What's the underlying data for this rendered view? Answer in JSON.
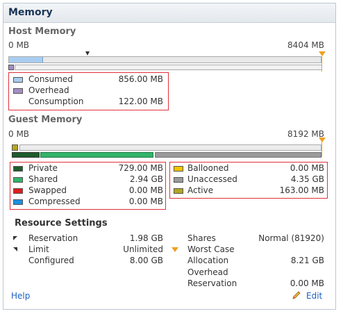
{
  "panel": {
    "title": "Memory"
  },
  "host": {
    "title": "Host Memory",
    "min": "0 MB",
    "max": "8404 MB",
    "rows": [
      {
        "label": "Consumed",
        "value": "856.00 MB",
        "color": "#a8cdf0"
      },
      {
        "label": "Overhead",
        "value": "",
        "color": "#a58dc5"
      },
      {
        "label": "Consumption",
        "value": "122.00 MB",
        "color": ""
      }
    ]
  },
  "guest": {
    "title": "Guest Memory",
    "min": "0 MB",
    "max": "8192 MB",
    "left_rows": [
      {
        "label": "Private",
        "value": "729.00 MB",
        "color": "#1f5d2b"
      },
      {
        "label": "Shared",
        "value": "2.94 GB",
        "color": "#33b46a"
      },
      {
        "label": "Swapped",
        "value": "0.00 MB",
        "color": "#e21b1b"
      },
      {
        "label": "Compressed",
        "value": "0.00 MB",
        "color": "#1c8fe0"
      }
    ],
    "right_rows": [
      {
        "label": "Ballooned",
        "value": "0.00 MB",
        "color": "#f6c400"
      },
      {
        "label": "Unaccessed",
        "value": "4.35 GB",
        "color": "#9a9a9a"
      },
      {
        "label": "Active",
        "value": "163.00 MB",
        "color": "#b3a625"
      }
    ]
  },
  "resource": {
    "title": "Resource Settings",
    "left": [
      {
        "label": "Reservation",
        "value": "1.98 GB"
      },
      {
        "label": "Limit",
        "value": "Unlimited"
      },
      {
        "label": "Configured",
        "value": "8.00 GB"
      }
    ],
    "right": [
      {
        "label": "Shares",
        "value": "Normal (81920)"
      },
      {
        "label": "Worst Case",
        "value": ""
      },
      {
        "label": "Allocation",
        "value": "8.21 GB"
      },
      {
        "label": "Overhead",
        "value": ""
      },
      {
        "label": "Reservation",
        "value": "0.00 MB"
      }
    ]
  },
  "footer": {
    "help": "Help",
    "edit": "Edit"
  }
}
